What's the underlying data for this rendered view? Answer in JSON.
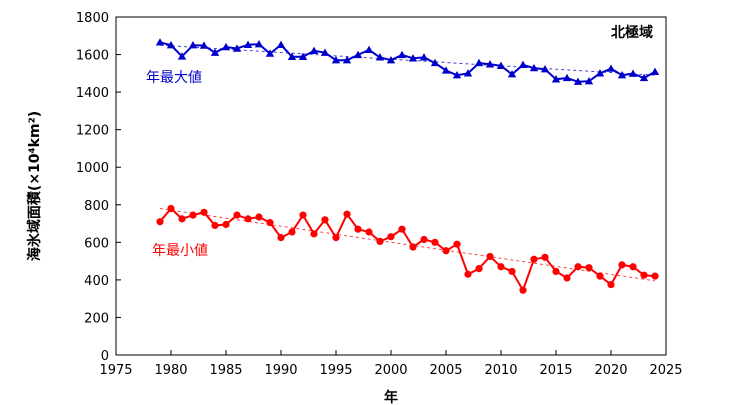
{
  "chart_data": {
    "type": "line",
    "title": "北極域",
    "xlabel": "年",
    "ylabel": "海氷域面積(×10⁴km²)",
    "xlim": [
      1975,
      2025
    ],
    "ylim": [
      0,
      1800
    ],
    "xticks": [
      1975,
      1980,
      1985,
      1990,
      1995,
      2000,
      2005,
      2010,
      2015,
      2020,
      2025
    ],
    "yticks": [
      0,
      200,
      400,
      600,
      800,
      1000,
      1200,
      1400,
      1600,
      1800
    ],
    "grid": false,
    "x": [
      1979,
      1980,
      1981,
      1982,
      1983,
      1984,
      1985,
      1986,
      1987,
      1988,
      1989,
      1990,
      1991,
      1992,
      1993,
      1994,
      1995,
      1996,
      1997,
      1998,
      1999,
      2000,
      2001,
      2002,
      2003,
      2004,
      2005,
      2006,
      2007,
      2008,
      2009,
      2010,
      2011,
      2012,
      2013,
      2014,
      2015,
      2016,
      2017,
      2018,
      2019,
      2020,
      2021,
      2022,
      2023,
      2024
    ],
    "series": [
      {
        "name": "年最大値",
        "color": "#0000cc",
        "marker": "triangle",
        "values": [
          1665,
          1650,
          1590,
          1650,
          1648,
          1610,
          1640,
          1632,
          1652,
          1655,
          1605,
          1652,
          1588,
          1588,
          1620,
          1610,
          1570,
          1570,
          1598,
          1625,
          1585,
          1570,
          1598,
          1580,
          1585,
          1555,
          1515,
          1490,
          1500,
          1555,
          1548,
          1540,
          1495,
          1545,
          1528,
          1522,
          1468,
          1475,
          1455,
          1458,
          1500,
          1525,
          1490,
          1498,
          1475,
          1508
        ],
        "trend": [
          1650,
          1490
        ]
      },
      {
        "name": "年最小値",
        "color": "#ff0000",
        "marker": "circle",
        "values": [
          710,
          780,
          725,
          745,
          760,
          690,
          695,
          745,
          725,
          735,
          705,
          625,
          655,
          745,
          645,
          720,
          625,
          750,
          670,
          655,
          605,
          630,
          670,
          575,
          615,
          600,
          555,
          590,
          430,
          460,
          525,
          470,
          445,
          345,
          510,
          520,
          445,
          410,
          470,
          465,
          420,
          375,
          480,
          470,
          425,
          420
        ],
        "trend": [
          780,
          395
        ]
      }
    ]
  }
}
